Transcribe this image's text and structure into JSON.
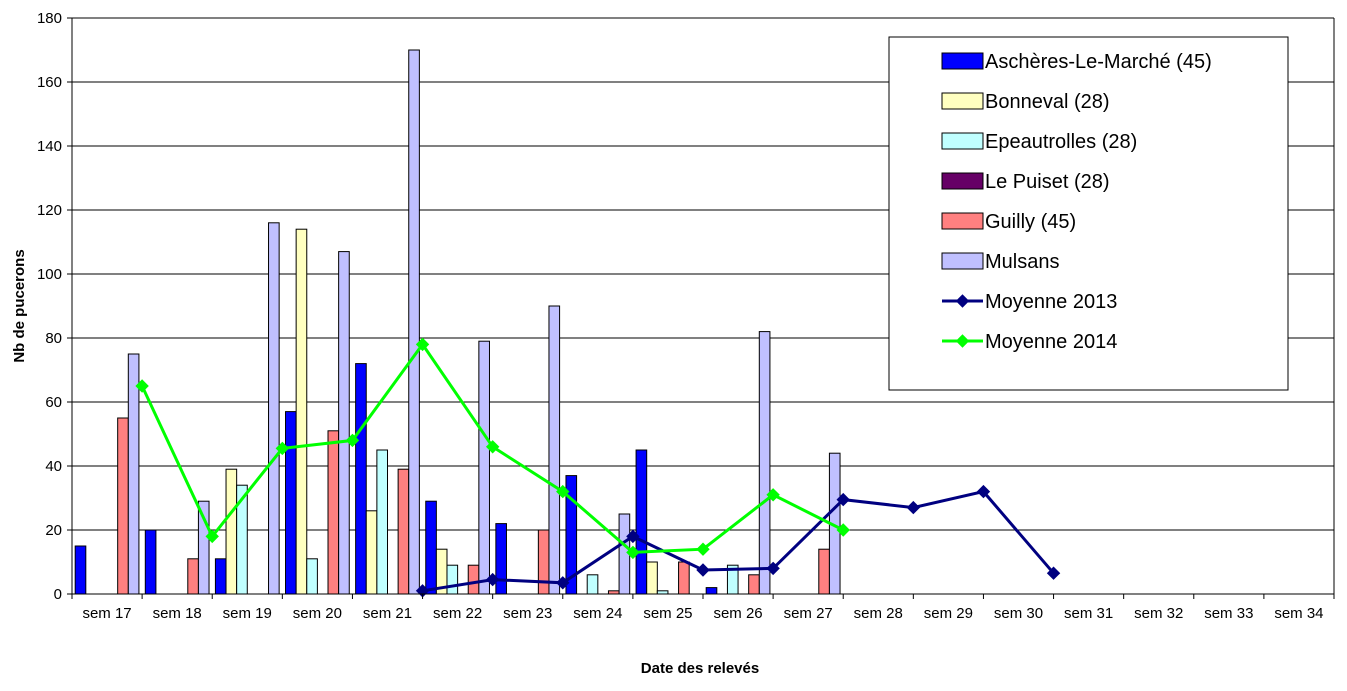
{
  "chart_data": {
    "type": "bar",
    "title": "",
    "xlabel": "Date des relevés",
    "ylabel": "Nb de pucerons",
    "ylim": [
      0,
      180
    ],
    "yticks": [
      0,
      20,
      40,
      60,
      80,
      100,
      120,
      140,
      160,
      180
    ],
    "grid": true,
    "legend_position": "top-right",
    "categories": [
      "sem 17",
      "sem 18",
      "sem 19",
      "sem 20",
      "sem 21",
      "sem 22",
      "sem 23",
      "sem 24",
      "sem 25",
      "sem 26",
      "sem 27",
      "sem 28",
      "sem 29",
      "sem 30",
      "sem 31",
      "sem 32",
      "sem 33",
      "sem 34"
    ],
    "bar_series": [
      {
        "name": "Aschères-Le-Marché (45)",
        "color": "#0000ff",
        "values": [
          15,
          20,
          11,
          57,
          72,
          29,
          22,
          37,
          45,
          2,
          null,
          null,
          null,
          null,
          null,
          null,
          null,
          null
        ]
      },
      {
        "name": "Bonneval (28)",
        "color": "#ffffc0",
        "values": [
          null,
          null,
          39,
          114,
          26,
          14,
          null,
          null,
          10,
          null,
          null,
          null,
          null,
          null,
          null,
          null,
          null,
          null
        ]
      },
      {
        "name": "Epeautrolles (28)",
        "color": "#c0ffff",
        "values": [
          null,
          null,
          34,
          11,
          45,
          9,
          null,
          6,
          1,
          9,
          null,
          null,
          null,
          null,
          null,
          null,
          null,
          null
        ]
      },
      {
        "name": "Le Puiset (28)",
        "color": "#660066",
        "values": [
          null,
          null,
          null,
          null,
          null,
          null,
          null,
          null,
          null,
          null,
          null,
          null,
          null,
          null,
          null,
          null,
          null,
          null
        ]
      },
      {
        "name": "Guilly (45)",
        "color": "#ff8080",
        "values": [
          55,
          11,
          null,
          51,
          39,
          9,
          20,
          1,
          10,
          6,
          14,
          null,
          null,
          null,
          null,
          null,
          null,
          null
        ]
      },
      {
        "name": "Mulsans",
        "color": "#c0c0ff",
        "values": [
          75,
          29,
          116,
          107,
          170,
          79,
          90,
          25,
          null,
          82,
          44,
          null,
          null,
          null,
          null,
          null,
          null,
          null
        ]
      }
    ],
    "line_series": [
      {
        "name": "Moyenne 2013",
        "color": "#000080",
        "marker": "diamond",
        "values": [
          null,
          null,
          null,
          null,
          1,
          4.5,
          3.5,
          18,
          7.5,
          8,
          29.5,
          27,
          32,
          6.5,
          null,
          null,
          null,
          null
        ]
      },
      {
        "name": "Moyenne 2014",
        "color": "#00ff00",
        "marker": "diamond",
        "values": [
          65,
          18,
          45.5,
          48,
          78,
          46,
          32,
          13,
          14,
          31,
          20,
          null,
          null,
          null,
          null,
          null,
          null,
          null
        ]
      }
    ]
  }
}
